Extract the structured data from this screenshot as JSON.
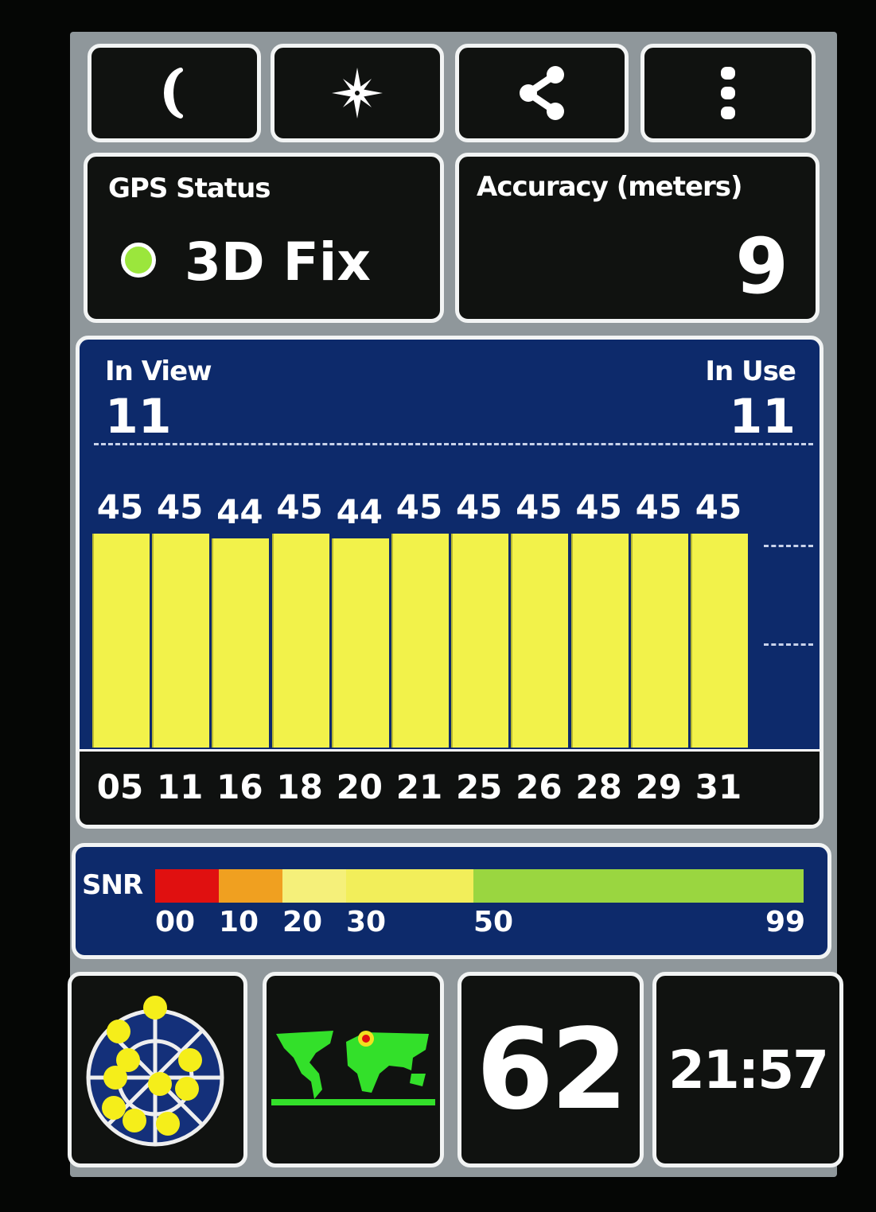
{
  "toolbar": {
    "buttons": [
      {
        "name": "night-mode",
        "icon": "moon-icon"
      },
      {
        "name": "compass",
        "icon": "compass-star-icon"
      },
      {
        "name": "share",
        "icon": "share-icon"
      },
      {
        "name": "more",
        "icon": "more-vertical-icon"
      }
    ]
  },
  "gps_status": {
    "title": "GPS Status",
    "value": "3D Fix",
    "indicator_color": "#9be63c"
  },
  "accuracy": {
    "title": "Accuracy (meters)",
    "value": "9"
  },
  "satellites": {
    "in_view_label": "In View",
    "in_view": "11",
    "in_use_label": "In Use",
    "in_use": "11"
  },
  "chart_data": {
    "type": "bar",
    "categories": [
      "05",
      "11",
      "16",
      "18",
      "20",
      "21",
      "25",
      "26",
      "28",
      "29",
      "31"
    ],
    "values": [
      45,
      45,
      44,
      45,
      44,
      45,
      45,
      45,
      45,
      45,
      45
    ],
    "bar_color": "#f2f24a",
    "background": "#0d2a6b",
    "ylim": [
      0,
      64
    ],
    "grid": true
  },
  "snr": {
    "label": "SNR",
    "ticks": [
      "00",
      "10",
      "20",
      "30",
      "50",
      "99"
    ],
    "colors": {
      "red": "#e01010",
      "orange": "#f0a020",
      "light_yellow": "#f5f07a",
      "yellow": "#f2ee5a",
      "green": "#9ad640"
    }
  },
  "bottom": {
    "sky_view_icon": "sky-plot-icon",
    "world_map_icon": "world-map-icon",
    "number": "62",
    "time": "21:57"
  }
}
